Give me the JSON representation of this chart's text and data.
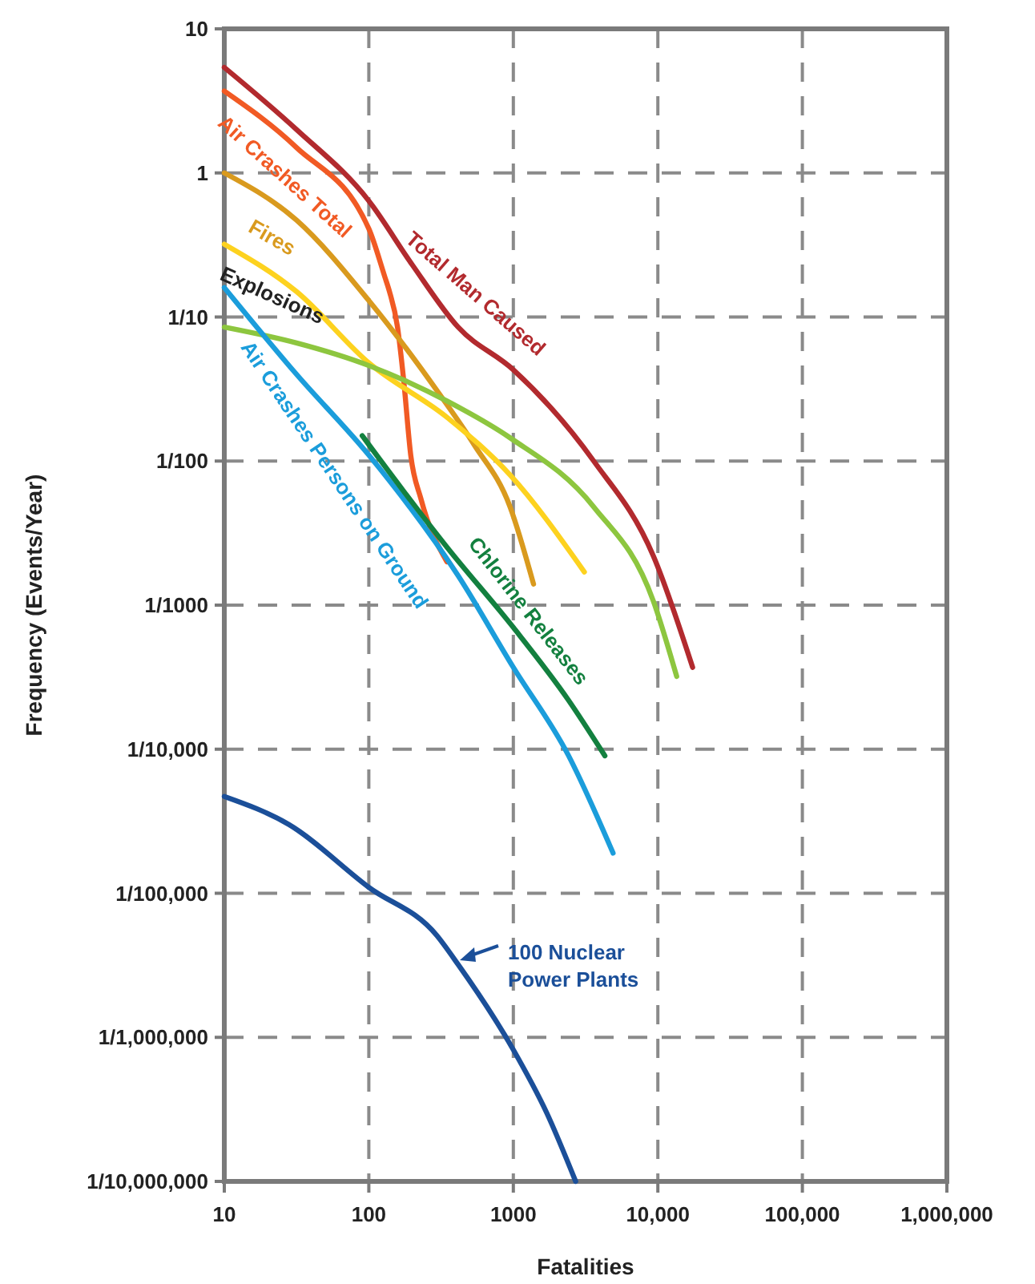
{
  "chart_data": {
    "type": "line",
    "xlabel": "Fatalities",
    "ylabel": "Frequency (Events/Year)",
    "log": "xy",
    "grid": true,
    "marker": "none",
    "line_style": "solid",
    "xlim": [
      10,
      1000000
    ],
    "xticks": [
      10,
      100,
      1000,
      {
        "value": 10000,
        "label": "10,000"
      },
      {
        "value": 100000,
        "label": "100,000"
      },
      {
        "value": 1000000,
        "label": "1,000,000"
      }
    ],
    "ylim": [
      1e-07,
      10
    ],
    "yticks": [
      10,
      1,
      {
        "value": 0.1,
        "label": "1/10"
      },
      {
        "value": 0.01,
        "label": "1/100"
      },
      {
        "value": 0.001,
        "label": "1/1000"
      },
      {
        "value": 0.0001,
        "label": "1/10,000"
      },
      {
        "value": 1e-05,
        "label": "1/100,000"
      },
      {
        "value": 1e-06,
        "label": "1/1,000,000"
      },
      {
        "value": 1e-07,
        "label": "1/10,000,000"
      }
    ],
    "series": [
      {
        "name": "Total Man Caused",
        "color": "#b22a2e",
        "x": [
          10,
          31.6,
          100,
          200,
          415,
          1000,
          3600,
          9300,
          17400
        ],
        "values": [
          5.4,
          2.0,
          0.64,
          0.23,
          0.085,
          0.043,
          0.01,
          0.0022,
          0.00037
        ]
      },
      {
        "name": "Air Crashes Total",
        "color": "#f15a24",
        "x": [
          10,
          31.6,
          100,
          129,
          139,
          158,
          174,
          195,
          229,
          347
        ],
        "values": [
          3.7,
          1.5,
          0.41,
          0.19,
          0.15,
          0.085,
          0.037,
          0.011,
          0.0055,
          0.002
        ]
      },
      {
        "name": "Fires",
        "color": "#d99a1e",
        "x": [
          10,
          31.6,
          100,
          295,
          535,
          950,
          1380
        ],
        "values": [
          1.0,
          0.47,
          0.13,
          0.031,
          0.013,
          0.0048,
          0.0014
        ]
      },
      {
        "name": "Explosions",
        "color": "#fdd21f",
        "x": [
          10,
          31.6,
          100,
          350,
          950,
          3100
        ],
        "values": [
          0.32,
          0.15,
          0.048,
          0.02,
          0.008,
          0.0017
        ]
      },
      {
        "color": "#8dc63f",
        "x": [
          10,
          31.6,
          100,
          350,
          950,
          3600,
          9300,
          13500
        ],
        "values": [
          0.085,
          0.066,
          0.046,
          0.026,
          0.0145,
          0.0048,
          0.00107,
          0.00032
        ]
      },
      {
        "name": "Air Crashes Persons on Ground",
        "color": "#1b9ddb",
        "x": [
          10,
          31.6,
          100,
          415,
          1000,
          2400,
          4900
        ],
        "values": [
          0.16,
          0.04,
          0.011,
          0.0016,
          0.00037,
          9.1e-05,
          1.9e-05
        ]
      },
      {
        "name": "Chlorine Releases",
        "color": "#13803f",
        "x": [
          90,
          100,
          350,
          1000,
          2400,
          4300
        ],
        "values": [
          0.015,
          0.013,
          0.0025,
          0.0007,
          0.00022,
          9e-05
        ]
      },
      {
        "name": "100 Nuclear Power Plants",
        "color": "#1b4f99",
        "x": [
          10,
          28,
          100,
          295,
          415,
          1000,
          1700,
          2700
        ],
        "values": [
          4.7e-05,
          3e-05,
          1.1e-05,
          5.1e-06,
          3.2e-06,
          8.2e-07,
          3e-07,
          1e-07
        ]
      }
    ]
  }
}
